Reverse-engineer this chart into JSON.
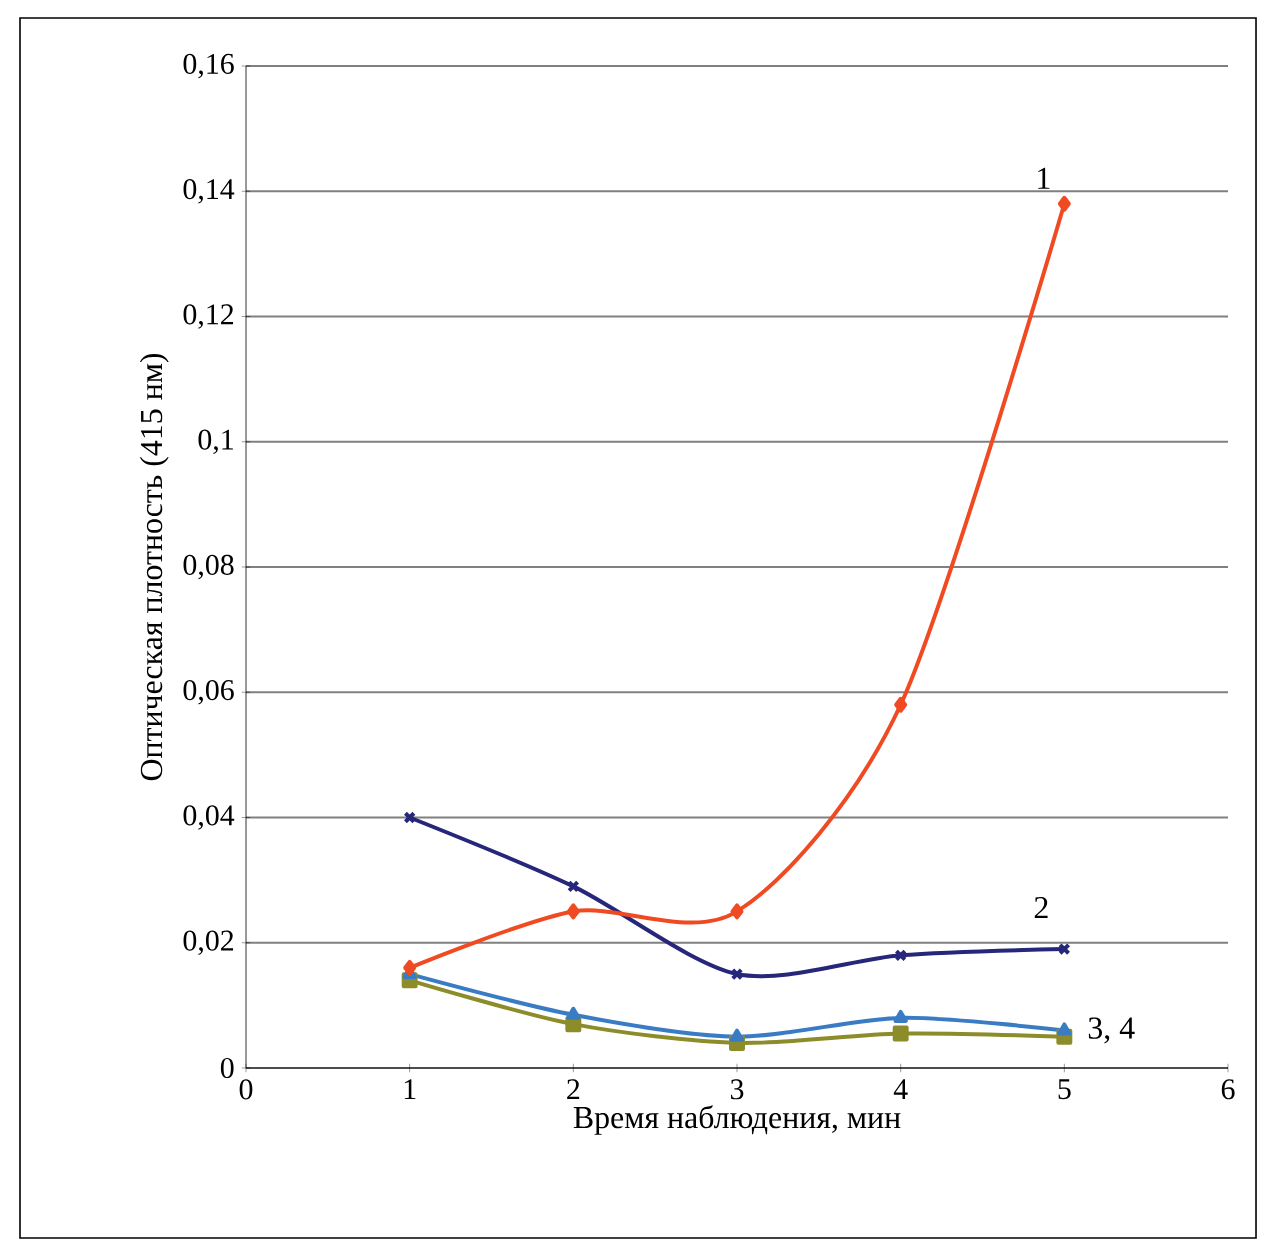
{
  "chart_data": {
    "type": "line",
    "xlabel": "Время наблюдения, мин",
    "ylabel": "Оптическая плотность (415 нм)",
    "x": [
      1,
      2,
      3,
      4,
      5
    ],
    "series": [
      {
        "color": "#f04a23",
        "marker": "diamond",
        "values": [
          0.016,
          0.025,
          0.025,
          0.058,
          0.138
        ]
      },
      {
        "color": "#26267a",
        "marker": "cross",
        "values": [
          0.04,
          0.029,
          0.015,
          0.018,
          0.019
        ]
      },
      {
        "color": "#3a7cc4",
        "marker": "triangle",
        "values": [
          0.015,
          0.0085,
          0.005,
          0.008,
          0.006
        ]
      },
      {
        "color": "#8c8c2a",
        "marker": "square",
        "values": [
          0.014,
          0.007,
          0.004,
          0.0055,
          0.005
        ]
      }
    ],
    "annotations": [
      "1",
      "2",
      "3, 4"
    ],
    "xlim": [
      0,
      6
    ],
    "xticks": [
      0,
      1,
      2,
      3,
      4,
      5,
      6
    ],
    "ylim": [
      0,
      0.16
    ],
    "yticks": [
      0,
      {
        "value": 0.02,
        "label": "0,02"
      },
      {
        "value": 0.04,
        "label": "0,04"
      },
      {
        "value": 0.06,
        "label": "0,06"
      },
      {
        "value": 0.08,
        "label": "0,08"
      },
      {
        "value": 0.1,
        "label": "0,1"
      },
      {
        "value": 0.12,
        "label": "0,12"
      },
      {
        "value": 0.14,
        "label": "0,14"
      },
      {
        "value": 0.16,
        "label": "0,16"
      }
    ],
    "grid": "y",
    "line_style": "solid"
  }
}
